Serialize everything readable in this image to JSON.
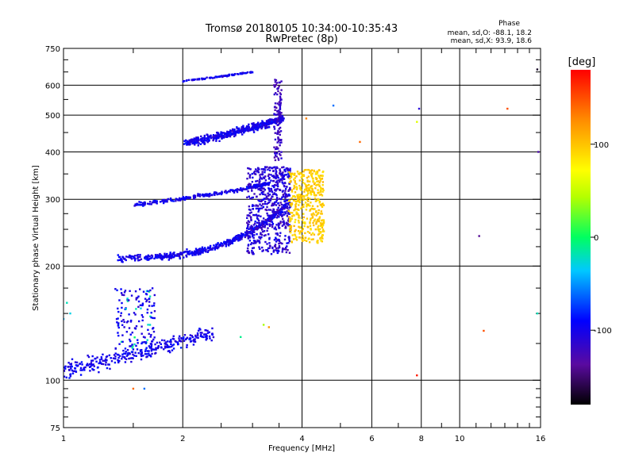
{
  "chart_data": {
    "type": "scatter",
    "title": "Tromsø 20180105 10:34:00-10:35:43",
    "subtitle": "RwPretec (8p)",
    "xlabel": "Frequency [MHz]",
    "ylabel": "Stationary phase Virtual Height [km]",
    "x_scale": "log",
    "y_scale": "log",
    "xlim": [
      1,
      16
    ],
    "ylim": [
      75,
      750
    ],
    "x_ticks": [
      1,
      2,
      4,
      6,
      8,
      10,
      16
    ],
    "y_ticks": [
      75,
      100,
      200,
      300,
      400,
      500,
      600,
      750
    ],
    "grid": true,
    "colorbar": {
      "label": "[deg]",
      "range": [
        -180,
        180
      ],
      "ticks": [
        100,
        0,
        -100
      ]
    },
    "stats": {
      "header": "Phase",
      "line_O": "mean, sd,O: -88.1, 18.2",
      "line_X": "mean, sd,X:  93.9, 18.6"
    }
  }
}
